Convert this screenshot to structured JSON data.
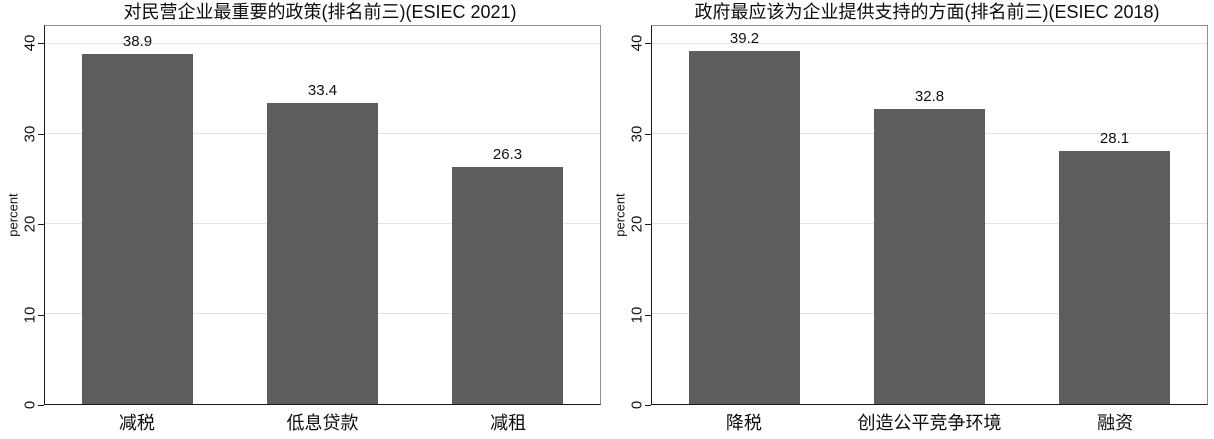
{
  "chart_data": [
    {
      "type": "bar",
      "title": "对民营企业最重要的政策(排名前三)(ESIEC 2021)",
      "ylabel": "percent",
      "xlabel": "",
      "categories": [
        "减税",
        "低息贷款",
        "减租"
      ],
      "values": [
        38.9,
        33.4,
        26.3
      ],
      "value_labels": [
        "38.9",
        "33.4",
        "26.3"
      ],
      "yticks": [
        "0",
        "10",
        "20",
        "30",
        "40"
      ],
      "ytick_values": [
        0,
        10,
        20,
        30,
        40
      ],
      "ylim": [
        0,
        42
      ],
      "grid": true,
      "legend_position": "none",
      "bar_color": "#5d5d5d"
    },
    {
      "type": "bar",
      "title": "政府最应该为企业提供支持的方面(排名前三)(ESIEC 2018)",
      "ylabel": "percent",
      "xlabel": "",
      "categories": [
        "降税",
        "创造公平竞争环境",
        "融资"
      ],
      "values": [
        39.2,
        32.8,
        28.1
      ],
      "value_labels": [
        "39.2",
        "32.8",
        "28.1"
      ],
      "yticks": [
        "0",
        "10",
        "20",
        "30",
        "40"
      ],
      "ytick_values": [
        0,
        10,
        20,
        30,
        40
      ],
      "ylim": [
        0,
        42
      ],
      "grid": true,
      "legend_position": "none",
      "bar_color": "#5d5d5d"
    }
  ],
  "style": {
    "background": "#ffffff",
    "axis_color": "#1a1a1a",
    "frame_color": "#8f8f8f",
    "grid_color": "#e2e2e2",
    "text_color": "#0f0f0f"
  }
}
